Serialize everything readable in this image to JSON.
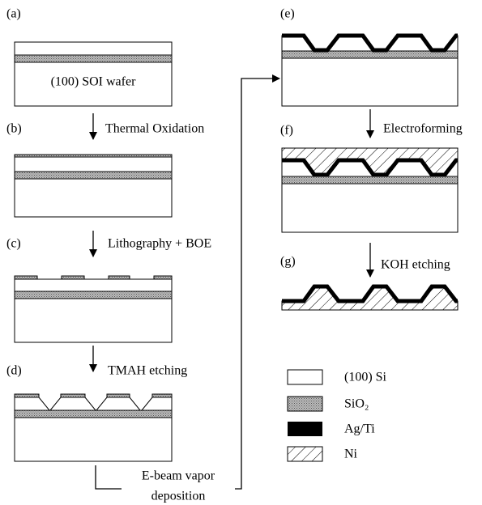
{
  "labels": [
    "(a)",
    "(b)",
    "(c)",
    "(d)",
    "(e)",
    "(f)",
    "(g)"
  ],
  "wafer_caption": "(100) SOI wafer",
  "steps": [
    "Thermal Oxidation",
    "Lithography + BOE",
    "TMAH etching",
    "Electroforming",
    "KOH etching"
  ],
  "transfer_step": [
    "E-beam vapor",
    "deposition"
  ],
  "legend": [
    "(100) Si",
    "SiO₂",
    "Ag/Ti",
    "Ni"
  ]
}
